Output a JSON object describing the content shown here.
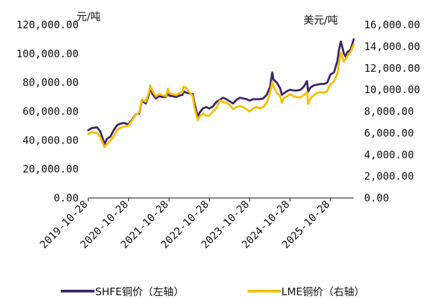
{
  "chart_data": {
    "type": "line",
    "title": "",
    "left_unit": "元/吨",
    "right_unit": "美元/吨",
    "y_left": {
      "lim": [
        0,
        120000
      ],
      "ticks": [
        "0.00",
        "20,000.00",
        "40,000.00",
        "60,000.00",
        "80,000.00",
        "100,000.00",
        "120,000.00"
      ]
    },
    "y_right": {
      "lim": [
        0,
        16000
      ],
      "ticks": [
        "0.00",
        "2,000.00",
        "4,000.00",
        "6,000.00",
        "8,000.00",
        "10,000.00",
        "12,000.00",
        "14,000.00",
        "16,000.00"
      ]
    },
    "x_ticks": [
      "2019-10-28",
      "2020-10-28",
      "2021-10-28",
      "2022-10-28",
      "2023-10-28",
      "2024-10-28",
      "2025-10-28"
    ],
    "x_range": [
      "2019-10-28",
      "2026-05-28"
    ],
    "colors": {
      "shfe": "#3d2a66",
      "lme": "#f5c000",
      "axis": "#000000"
    },
    "legend": {
      "position": "bottom",
      "shfe_label": "SHFE铜价（左轴）",
      "lme_label": "LME铜价（右轴）"
    },
    "series": [
      {
        "name": "SHFE铜价（左轴）",
        "axis": "left",
        "x": [
          "2019-10-28",
          "2019-12-01",
          "2020-01-15",
          "2020-02-15",
          "2020-03-23",
          "2020-04-15",
          "2020-05-15",
          "2020-06-15",
          "2020-07-15",
          "2020-08-15",
          "2020-09-15",
          "2020-10-28",
          "2020-11-30",
          "2020-12-31",
          "2021-01-31",
          "2021-02-25",
          "2021-03-31",
          "2021-04-30",
          "2021-05-10",
          "2021-05-31",
          "2021-06-30",
          "2021-07-31",
          "2021-08-31",
          "2021-09-30",
          "2021-10-20",
          "2021-10-28",
          "2021-11-30",
          "2021-12-31",
          "2022-01-31",
          "2022-02-28",
          "2022-03-08",
          "2022-03-31",
          "2022-04-30",
          "2022-05-31",
          "2022-06-15",
          "2022-07-15",
          "2022-07-31",
          "2022-08-31",
          "2022-09-30",
          "2022-10-28",
          "2022-11-30",
          "2022-12-31",
          "2023-01-31",
          "2023-02-28",
          "2023-03-31",
          "2023-04-30",
          "2023-05-31",
          "2023-06-30",
          "2023-07-31",
          "2023-08-31",
          "2023-09-30",
          "2023-10-28",
          "2023-11-30",
          "2023-12-31",
          "2024-01-31",
          "2024-02-29",
          "2024-03-31",
          "2024-04-30",
          "2024-05-20",
          "2024-05-31",
          "2024-06-30",
          "2024-07-31",
          "2024-08-15",
          "2024-08-31",
          "2024-09-30",
          "2024-10-28",
          "2024-11-30",
          "2024-12-31",
          "2025-01-31",
          "2025-02-28",
          "2025-03-31",
          "2025-04-09",
          "2025-04-30",
          "2025-05-31",
          "2025-06-30",
          "2025-07-31",
          "2025-08-31",
          "2025-09-30",
          "2025-10-28",
          "2025-11-30",
          "2025-12-31",
          "2026-01-15",
          "2026-01-31",
          "2026-02-28",
          "2026-03-15",
          "2026-03-31",
          "2026-04-30",
          "2026-05-28"
        ],
        "y": [
          47000,
          48500,
          49000,
          46000,
          37500,
          41000,
          42500,
          47000,
          50500,
          51500,
          52000,
          51000,
          54500,
          58000,
          58500,
          67500,
          65500,
          72000,
          76500,
          72000,
          69000,
          70500,
          70000,
          70000,
          73500,
          71000,
          70500,
          70000,
          71000,
          71500,
          74000,
          73000,
          72500,
          72000,
          66000,
          56500,
          59000,
          62000,
          63000,
          62000,
          63500,
          66500,
          68000,
          69500,
          68500,
          67000,
          65500,
          68000,
          69500,
          69000,
          68500,
          67500,
          68500,
          68500,
          68500,
          69000,
          71500,
          77000,
          87000,
          82000,
          80000,
          76000,
          71500,
          72500,
          74000,
          75000,
          74500,
          74500,
          75000,
          77000,
          81000,
          73500,
          76500,
          78000,
          78500,
          79000,
          79000,
          80000,
          85500,
          87000,
          95000,
          103000,
          108500,
          100000,
          98000,
          101000,
          103000,
          110000
        ]
      },
      {
        "name": "LME铜价（右轴）",
        "axis": "right",
        "x": [
          "2019-10-28",
          "2019-12-01",
          "2020-01-15",
          "2020-02-15",
          "2020-03-23",
          "2020-04-15",
          "2020-05-15",
          "2020-06-15",
          "2020-07-15",
          "2020-08-15",
          "2020-09-15",
          "2020-10-28",
          "2020-11-30",
          "2020-12-31",
          "2021-01-31",
          "2021-02-25",
          "2021-03-31",
          "2021-04-30",
          "2021-05-10",
          "2021-05-31",
          "2021-06-30",
          "2021-07-31",
          "2021-08-31",
          "2021-09-30",
          "2021-10-20",
          "2021-10-28",
          "2021-11-30",
          "2021-12-31",
          "2022-01-31",
          "2022-02-28",
          "2022-03-08",
          "2022-03-31",
          "2022-04-30",
          "2022-05-31",
          "2022-06-15",
          "2022-07-15",
          "2022-07-31",
          "2022-08-31",
          "2022-09-30",
          "2022-10-28",
          "2022-11-30",
          "2022-12-31",
          "2023-01-31",
          "2023-02-28",
          "2023-03-31",
          "2023-04-30",
          "2023-05-31",
          "2023-06-30",
          "2023-07-31",
          "2023-08-31",
          "2023-09-30",
          "2023-10-28",
          "2023-11-30",
          "2023-12-31",
          "2024-01-31",
          "2024-02-29",
          "2024-03-31",
          "2024-04-30",
          "2024-05-20",
          "2024-05-31",
          "2024-06-30",
          "2024-07-31",
          "2024-08-15",
          "2024-08-31",
          "2024-09-30",
          "2024-10-28",
          "2024-11-30",
          "2024-12-31",
          "2025-01-31",
          "2025-02-28",
          "2025-03-31",
          "2025-04-09",
          "2025-04-30",
          "2025-05-31",
          "2025-06-30",
          "2025-07-31",
          "2025-08-31",
          "2025-09-30",
          "2025-10-28",
          "2025-11-30",
          "2025-12-31",
          "2026-01-15",
          "2026-01-31",
          "2026-02-28",
          "2026-03-15",
          "2026-03-31",
          "2026-04-30",
          "2026-05-28"
        ],
        "y": [
          5900,
          6100,
          6000,
          5600,
          4700,
          5000,
          5300,
          5700,
          6300,
          6500,
          6600,
          6700,
          7200,
          7700,
          7900,
          9100,
          8900,
          9800,
          10400,
          9900,
          9400,
          9600,
          9500,
          9400,
          10100,
          9700,
          9600,
          9500,
          9700,
          9800,
          10300,
          10200,
          9800,
          9400,
          8400,
          7200,
          7500,
          7800,
          7600,
          7600,
          8000,
          8300,
          9000,
          8900,
          8800,
          8600,
          8200,
          8400,
          8500,
          8400,
          8200,
          8000,
          8300,
          8400,
          8300,
          8400,
          8800,
          9700,
          10700,
          10300,
          9700,
          9400,
          8800,
          9200,
          9400,
          9600,
          9400,
          9300,
          9300,
          9500,
          9800,
          8700,
          9200,
          9500,
          9700,
          9800,
          9700,
          9900,
          10500,
          10800,
          11500,
          12500,
          13400,
          12600,
          12800,
          13100,
          13500,
          14200
        ]
      }
    ]
  }
}
